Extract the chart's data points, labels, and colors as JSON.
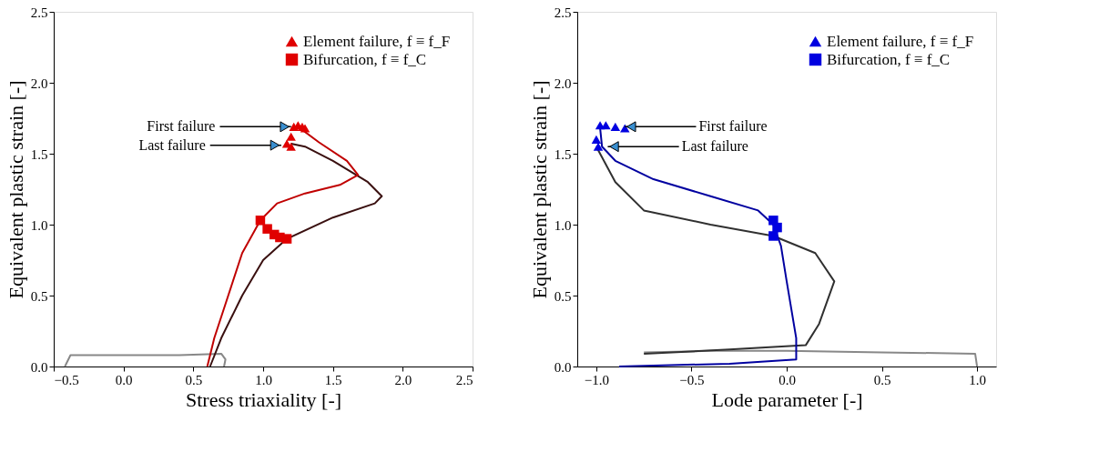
{
  "chart_data": [
    {
      "type": "line",
      "xlabel": "Stress triaxiality [-]",
      "ylabel": "Equivalent plastic strain [-]",
      "xlim": [
        -0.5,
        2.5
      ],
      "ylim": [
        0,
        2.5
      ],
      "xticks": [
        {
          "value": -0.5,
          "label": "−0.5"
        },
        {
          "value": 0,
          "label": "0.0"
        },
        {
          "value": 0.5,
          "label": "0.5"
        },
        {
          "value": 1,
          "label": "1.0"
        },
        {
          "value": 1.5,
          "label": "1.5"
        },
        {
          "value": 2,
          "label": "2.0"
        },
        {
          "value": 2.5,
          "label": "2.5"
        }
      ],
      "yticks": [
        {
          "value": 0,
          "label": "0.0"
        },
        {
          "value": 0.5,
          "label": "0.5"
        },
        {
          "value": 1,
          "label": "1.0"
        },
        {
          "value": 1.5,
          "label": "1.5"
        },
        {
          "value": 2,
          "label": "2.0"
        },
        {
          "value": 2.5,
          "label": "2.5"
        }
      ],
      "grid": false,
      "legend": "top right",
      "line_style": "solid",
      "series": [
        {
          "type": "line",
          "color": "#888888",
          "x": [
            -0.42,
            -0.38,
            0.0,
            0.4,
            0.7,
            0.73,
            0.72
          ],
          "values": [
            0.0,
            0.08,
            0.08,
            0.08,
            0.09,
            0.05,
            0.0
          ]
        },
        {
          "type": "line",
          "color": "#3a1010",
          "x": [
            0.62,
            0.7,
            0.85,
            1.0,
            1.17,
            1.5,
            1.8,
            1.85,
            1.75,
            1.5,
            1.3,
            1.2
          ],
          "values": [
            0.0,
            0.2,
            0.5,
            0.75,
            0.9,
            1.05,
            1.15,
            1.2,
            1.3,
            1.45,
            1.55,
            1.57
          ]
        },
        {
          "type": "line",
          "color": "#c00000",
          "x": [
            0.6,
            0.65,
            0.75,
            0.85,
            0.98,
            1.1,
            1.3,
            1.55,
            1.68,
            1.6,
            1.4,
            1.25
          ],
          "values": [
            0.0,
            0.2,
            0.5,
            0.8,
            1.03,
            1.15,
            1.22,
            1.28,
            1.35,
            1.45,
            1.58,
            1.69
          ]
        },
        {
          "type": "scatter",
          "name": "Element failure, f ≡ f_F",
          "marker": "triangle",
          "color": "#e00000",
          "x": [
            1.22,
            1.25,
            1.28,
            1.3,
            1.2,
            1.17,
            1.2
          ],
          "values": [
            1.69,
            1.7,
            1.69,
            1.68,
            1.62,
            1.57,
            1.55
          ]
        },
        {
          "type": "scatter",
          "name": "Bifurcation, f ≡ f_C",
          "marker": "square",
          "color": "#e00000",
          "x": [
            0.98,
            1.03,
            1.08,
            1.12,
            1.17
          ],
          "values": [
            1.03,
            0.97,
            0.93,
            0.91,
            0.9
          ]
        }
      ],
      "annotations": [
        {
          "text": "First failure",
          "x": 1.2,
          "y": 1.69
        },
        {
          "text": "Last failure",
          "x": 1.13,
          "y": 1.56
        }
      ]
    },
    {
      "type": "line",
      "xlabel": "Lode parameter [-]",
      "ylabel": "Equivalent plastic strain [-]",
      "xlim": [
        -1.1,
        1.1
      ],
      "ylim": [
        0,
        2.5
      ],
      "xticks": [
        {
          "value": -1,
          "label": "−1.0"
        },
        {
          "value": -0.5,
          "label": "−0.5"
        },
        {
          "value": 0,
          "label": "0.0"
        },
        {
          "value": 0.5,
          "label": "0.5"
        },
        {
          "value": 1,
          "label": "1.0"
        }
      ],
      "yticks": [
        {
          "value": 0,
          "label": "0.0"
        },
        {
          "value": 0.5,
          "label": "0.5"
        },
        {
          "value": 1,
          "label": "1.0"
        },
        {
          "value": 1.5,
          "label": "1.5"
        },
        {
          "value": 2,
          "label": "2.0"
        },
        {
          "value": 2.5,
          "label": "2.5"
        }
      ],
      "grid": false,
      "legend": "top right",
      "line_style": "solid",
      "series": [
        {
          "type": "line",
          "color": "#888888",
          "x": [
            -0.75,
            -0.4,
            0.0,
            0.5,
            0.99,
            1.0
          ],
          "values": [
            0.1,
            0.11,
            0.11,
            0.1,
            0.09,
            0.0
          ]
        },
        {
          "type": "line",
          "color": "#303030",
          "x": [
            -0.75,
            -0.3,
            0.1,
            0.17,
            0.25,
            0.15,
            -0.07,
            -0.4,
            -0.75,
            -0.9,
            -1.0
          ],
          "values": [
            0.09,
            0.12,
            0.15,
            0.3,
            0.6,
            0.8,
            0.92,
            1.0,
            1.1,
            1.3,
            1.55
          ]
        },
        {
          "type": "line",
          "color": "#0000a0",
          "x": [
            -0.88,
            -0.3,
            0.05,
            0.05,
            0.0,
            -0.03,
            -0.07,
            -0.15,
            -0.4,
            -0.7,
            -0.9,
            -0.97,
            -0.98
          ],
          "values": [
            0.0,
            0.02,
            0.05,
            0.2,
            0.6,
            0.85,
            1.0,
            1.1,
            1.2,
            1.32,
            1.45,
            1.55,
            1.68
          ]
        },
        {
          "type": "scatter",
          "name": "Element failure, f ≡ f_F",
          "marker": "triangle",
          "color": "#0000e0",
          "x": [
            -0.98,
            -0.95,
            -0.9,
            -0.85,
            -1.0,
            -0.99
          ],
          "values": [
            1.7,
            1.7,
            1.69,
            1.68,
            1.6,
            1.55
          ]
        },
        {
          "type": "scatter",
          "name": "Bifurcation, f ≡ f_C",
          "marker": "square",
          "color": "#0000e0",
          "x": [
            -0.07,
            -0.05,
            -0.07
          ],
          "values": [
            1.03,
            0.98,
            0.92
          ]
        }
      ],
      "annotations": [
        {
          "text": "First failure",
          "x": -0.85,
          "y": 1.69
        },
        {
          "text": "Last failure",
          "x": -0.94,
          "y": 1.55
        }
      ]
    }
  ]
}
